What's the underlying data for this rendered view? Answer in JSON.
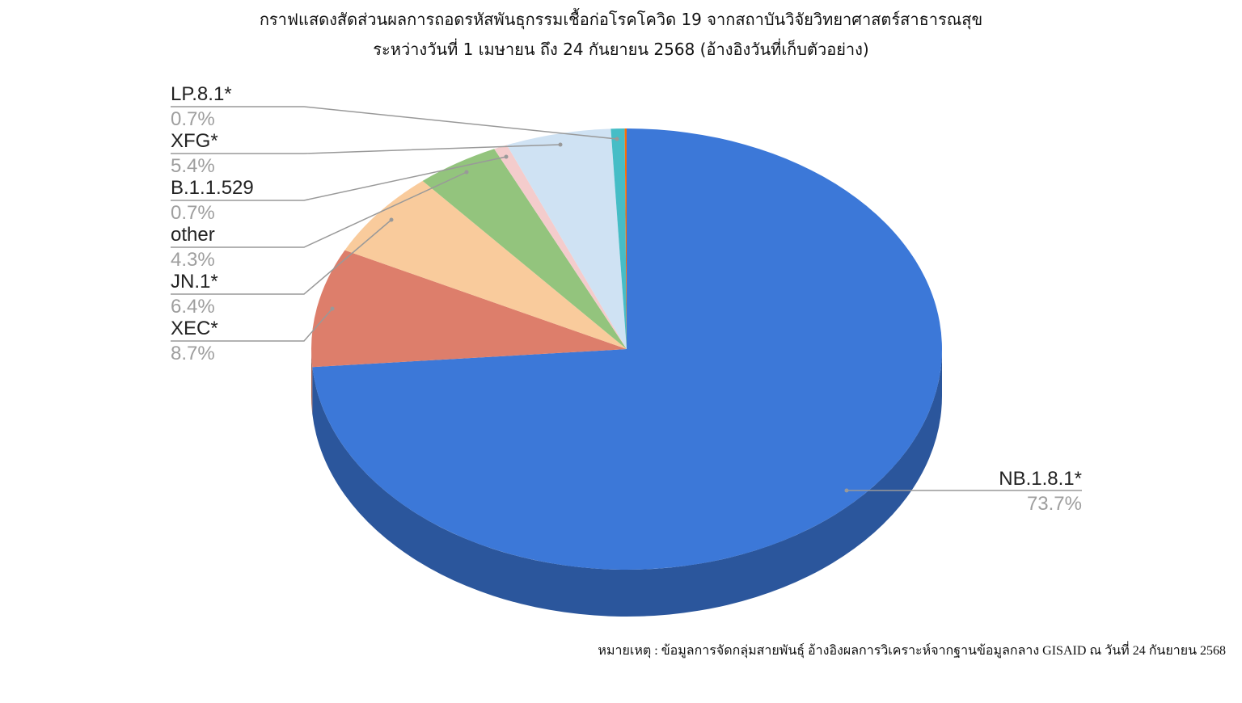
{
  "title_line1": "กราฟแสดงสัดส่วนผลการถอดรหัสพันธุกรรมเชื้อก่อโรคโควิด 19 จากสถาบันวิจัยวิทยาศาสตร์สาธารณสุข",
  "title_line2": "ระหว่างวันที่ 1 เมษายน ถึง 24 กันยายน 2568 (อ้างอิงวันที่เก็บตัวอย่าง)",
  "footnote": "หมายเหตุ : ข้อมูลการจัดกลุ่มสายพันธุ์ อ้างอิงผลการวิเคราะห์จากฐานข้อมูลกลาง GISAID ณ วันที่ 24 กันยายน 2568",
  "chart_data": {
    "type": "pie",
    "style": "3d",
    "start": "top, clockwise",
    "slices": [
      {
        "name": "NB.1.8.1*",
        "value": 73.7,
        "label": "73.7%",
        "color": "#3c78d8"
      },
      {
        "name": "XEC*",
        "value": 8.7,
        "label": "8.7%",
        "color": "#dd7e6b"
      },
      {
        "name": "JN.1*",
        "value": 6.4,
        "label": "6.4%",
        "color": "#f9cb9c"
      },
      {
        "name": "other",
        "value": 4.3,
        "label": "4.3%",
        "color": "#93c47d"
      },
      {
        "name": "B.1.1.529",
        "value": 0.7,
        "label": "0.7%",
        "color": "#f4cccc"
      },
      {
        "name": "XFG*",
        "value": 5.4,
        "label": "5.4%",
        "color": "#cfe2f3"
      },
      {
        "name": "LP.8.1*",
        "value": 0.7,
        "label": "0.7%",
        "color": "#46bdc6"
      },
      {
        "name": "",
        "value": 0.1,
        "label": "",
        "color": "#ff6d01"
      }
    ]
  }
}
